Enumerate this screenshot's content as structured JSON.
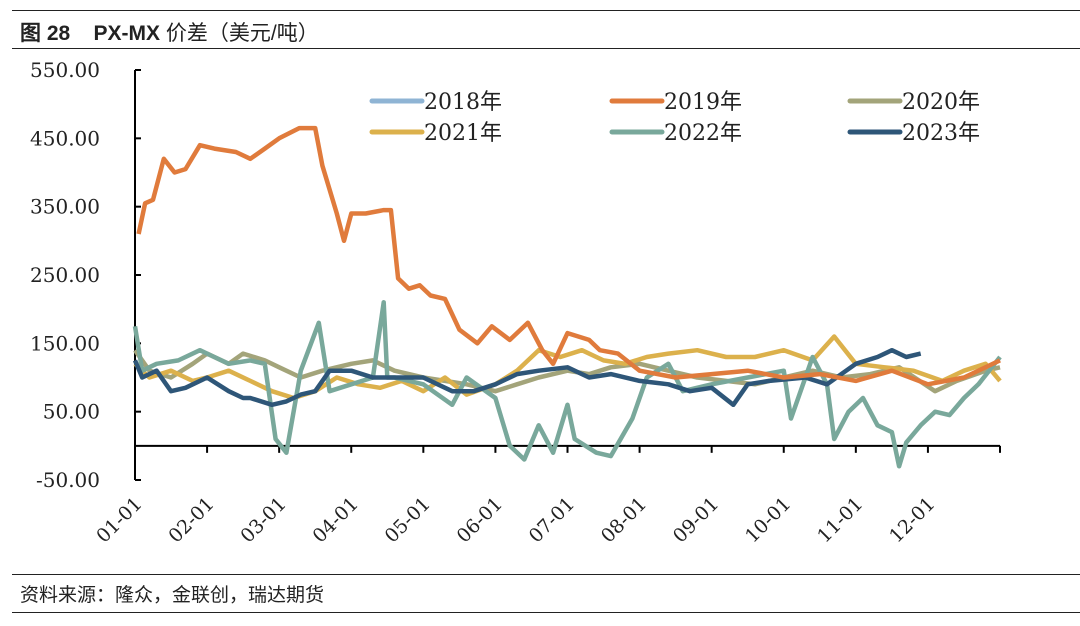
{
  "title": {
    "fig": "图 28",
    "name": "PX-MX",
    "rest": "价差（美元/吨）"
  },
  "source": "资料来源：隆众，金联创，瑞达期货",
  "chart_data": {
    "type": "line",
    "title": "PX-MX 价差（美元/吨）",
    "ylabel": "",
    "xlabel": "",
    "ylim": [
      -50,
      550
    ],
    "yticks": [
      -50,
      50,
      150,
      250,
      350,
      450,
      550
    ],
    "ytick_labels": [
      "-50.00",
      "50.00",
      "150.00",
      "250.00",
      "350.00",
      "450.00",
      "550.00"
    ],
    "xlim": [
      0,
      12
    ],
    "xtick_labels": [
      "01-01",
      "02-01",
      "03-01",
      "04-01",
      "05-01",
      "06-01",
      "07-01",
      "08-01",
      "09-01",
      "10-01",
      "11-01",
      "12-01"
    ],
    "legend_position": "top",
    "series": [
      {
        "name": "2018年",
        "color": "#8fb4d4",
        "x": [],
        "y": []
      },
      {
        "name": "2019年",
        "color": "#e07b3c",
        "x": [
          0.05,
          0.14,
          0.25,
          0.4,
          0.55,
          0.7,
          0.9,
          1.1,
          1.4,
          1.6,
          1.8,
          2.0,
          2.28,
          2.5,
          2.6,
          2.8,
          2.9,
          3.0,
          3.2,
          3.45,
          3.55,
          3.65,
          3.8,
          3.95,
          4.1,
          4.3,
          4.5,
          4.75,
          4.95,
          5.2,
          5.45,
          5.65,
          5.8,
          6.0,
          6.3,
          6.45,
          6.7,
          7.0,
          7.5,
          8.0,
          8.5,
          9.0,
          9.5,
          10.0,
          10.5,
          11.0,
          11.5,
          12.0
        ],
        "y": [
          310,
          355,
          360,
          420,
          400,
          405,
          440,
          435,
          430,
          420,
          435,
          450,
          465,
          465,
          410,
          340,
          300,
          340,
          340,
          345,
          345,
          245,
          230,
          235,
          220,
          215,
          170,
          150,
          175,
          155,
          180,
          140,
          120,
          165,
          155,
          140,
          135,
          110,
          100,
          105,
          110,
          100,
          105,
          95,
          110,
          90,
          100,
          125
        ]
      },
      {
        "name": "2020年",
        "color": "#a3a47a",
        "x": [
          0,
          0.2,
          0.5,
          0.8,
          1.0,
          1.3,
          1.5,
          1.8,
          2.0,
          2.3,
          2.6,
          3.0,
          3.3,
          3.6,
          4.0,
          4.3,
          4.6,
          5.0,
          5.3,
          5.6,
          6.0,
          6.3,
          6.6,
          7.0,
          7.4,
          7.8,
          8.2,
          8.6,
          9.0,
          9.4,
          9.8,
          10.2,
          10.6,
          11.1,
          11.4,
          11.8,
          12.0
        ],
        "y": [
          140,
          110,
          100,
          120,
          135,
          120,
          135,
          125,
          115,
          100,
          110,
          120,
          125,
          110,
          100,
          95,
          90,
          80,
          90,
          100,
          110,
          105,
          115,
          120,
          110,
          100,
          95,
          90,
          100,
          110,
          100,
          105,
          115,
          80,
          95,
          110,
          115
        ]
      },
      {
        "name": "2021年",
        "color": "#dcb14c",
        "x": [
          0,
          0.2,
          0.5,
          0.8,
          1.0,
          1.3,
          1.6,
          1.9,
          2.2,
          2.5,
          2.8,
          3.1,
          3.4,
          3.7,
          4.0,
          4.3,
          4.6,
          5.0,
          5.3,
          5.6,
          5.9,
          6.2,
          6.5,
          6.8,
          7.1,
          7.4,
          7.8,
          8.2,
          8.6,
          9.0,
          9.4,
          9.7,
          10.0,
          10.4,
          10.8,
          11.2,
          11.5,
          11.8,
          12.0
        ],
        "y": [
          120,
          100,
          110,
          95,
          100,
          110,
          95,
          80,
          70,
          80,
          100,
          90,
          85,
          95,
          80,
          100,
          75,
          90,
          110,
          140,
          130,
          140,
          125,
          120,
          130,
          135,
          140,
          130,
          130,
          140,
          125,
          160,
          120,
          115,
          110,
          95,
          110,
          120,
          95
        ]
      },
      {
        "name": "2022年",
        "color": "#79a89b",
        "x": [
          0,
          0.1,
          0.3,
          0.6,
          0.9,
          1.1,
          1.3,
          1.6,
          1.8,
          1.95,
          2.1,
          2.3,
          2.55,
          2.7,
          3.0,
          3.3,
          3.45,
          3.5,
          3.6,
          4.0,
          4.4,
          4.6,
          5.0,
          5.2,
          5.4,
          5.6,
          5.8,
          6.0,
          6.1,
          6.4,
          6.6,
          6.9,
          7.1,
          7.4,
          7.6,
          8.0,
          8.5,
          9.0,
          9.1,
          9.4,
          9.6,
          9.7,
          9.9,
          10.1,
          10.3,
          10.5,
          10.6,
          10.7,
          10.9,
          11.1,
          11.3,
          11.5,
          11.7,
          12.0
        ],
        "y": [
          175,
          110,
          120,
          125,
          140,
          130,
          120,
          125,
          120,
          10,
          -10,
          110,
          180,
          80,
          90,
          100,
          210,
          100,
          100,
          90,
          60,
          100,
          70,
          0,
          -20,
          30,
          -10,
          60,
          10,
          -10,
          -15,
          40,
          100,
          120,
          80,
          90,
          100,
          110,
          40,
          130,
          90,
          10,
          50,
          70,
          30,
          20,
          -30,
          5,
          30,
          50,
          45,
          70,
          90,
          130
        ]
      },
      {
        "name": "2023年",
        "color": "#2e5678",
        "x": [
          0,
          0.1,
          0.3,
          0.5,
          0.7,
          1.0,
          1.3,
          1.5,
          1.6,
          1.9,
          2.1,
          2.3,
          2.5,
          2.7,
          3.0,
          3.3,
          3.7,
          4.0,
          4.4,
          4.7,
          5.0,
          5.3,
          5.6,
          6.0,
          6.3,
          6.6,
          7.0,
          7.4,
          7.7,
          8.0,
          8.3,
          8.5,
          8.8,
          9.3,
          9.6,
          10.0,
          10.3,
          10.5,
          10.7,
          10.9
        ],
        "y": [
          125,
          100,
          110,
          80,
          85,
          100,
          80,
          70,
          70,
          60,
          65,
          75,
          80,
          110,
          110,
          100,
          100,
          100,
          80,
          80,
          90,
          105,
          110,
          115,
          100,
          105,
          95,
          90,
          80,
          85,
          60,
          90,
          95,
          100,
          90,
          120,
          130,
          140,
          130,
          135
        ]
      }
    ]
  }
}
